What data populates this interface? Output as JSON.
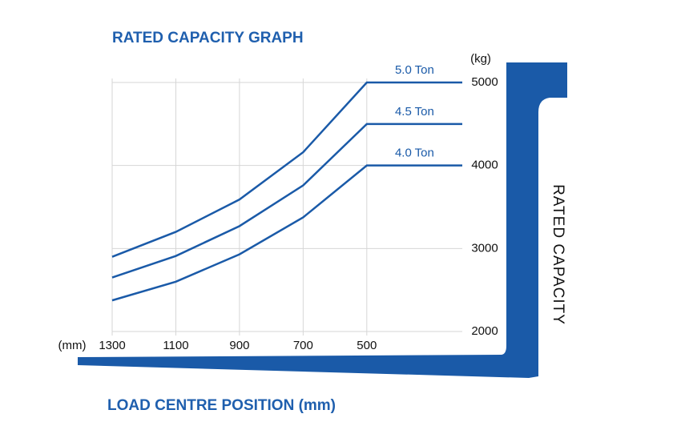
{
  "chart_data": {
    "type": "line",
    "title": "RATED CAPACITY GRAPH",
    "x_label": "LOAD CENTRE POSITION (mm)",
    "y_label": "RATED CAPACITY",
    "x_unit": "(mm)",
    "y_unit": "(kg)",
    "x": [
      1300,
      1100,
      900,
      700,
      500,
      200
    ],
    "series": [
      {
        "name": "5.0 Ton",
        "color": "#1a5aa8",
        "values": [
          2900,
          3200,
          3590,
          4160,
          5000,
          5000
        ]
      },
      {
        "name": "4.5 Ton",
        "color": "#1a5aa8",
        "values": [
          2650,
          2910,
          3270,
          3760,
          4500,
          4500
        ]
      },
      {
        "name": "4.0 Ton",
        "color": "#1a5aa8",
        "values": [
          2375,
          2600,
          2930,
          3375,
          4000,
          4000
        ]
      }
    ],
    "xlim": [
      1300,
      200
    ],
    "xticks": [
      1300,
      1100,
      900,
      700,
      500
    ],
    "ylim": [
      2000,
      5000
    ],
    "yticks": [
      2000,
      3000,
      4000,
      5000
    ],
    "grid": true
  }
}
